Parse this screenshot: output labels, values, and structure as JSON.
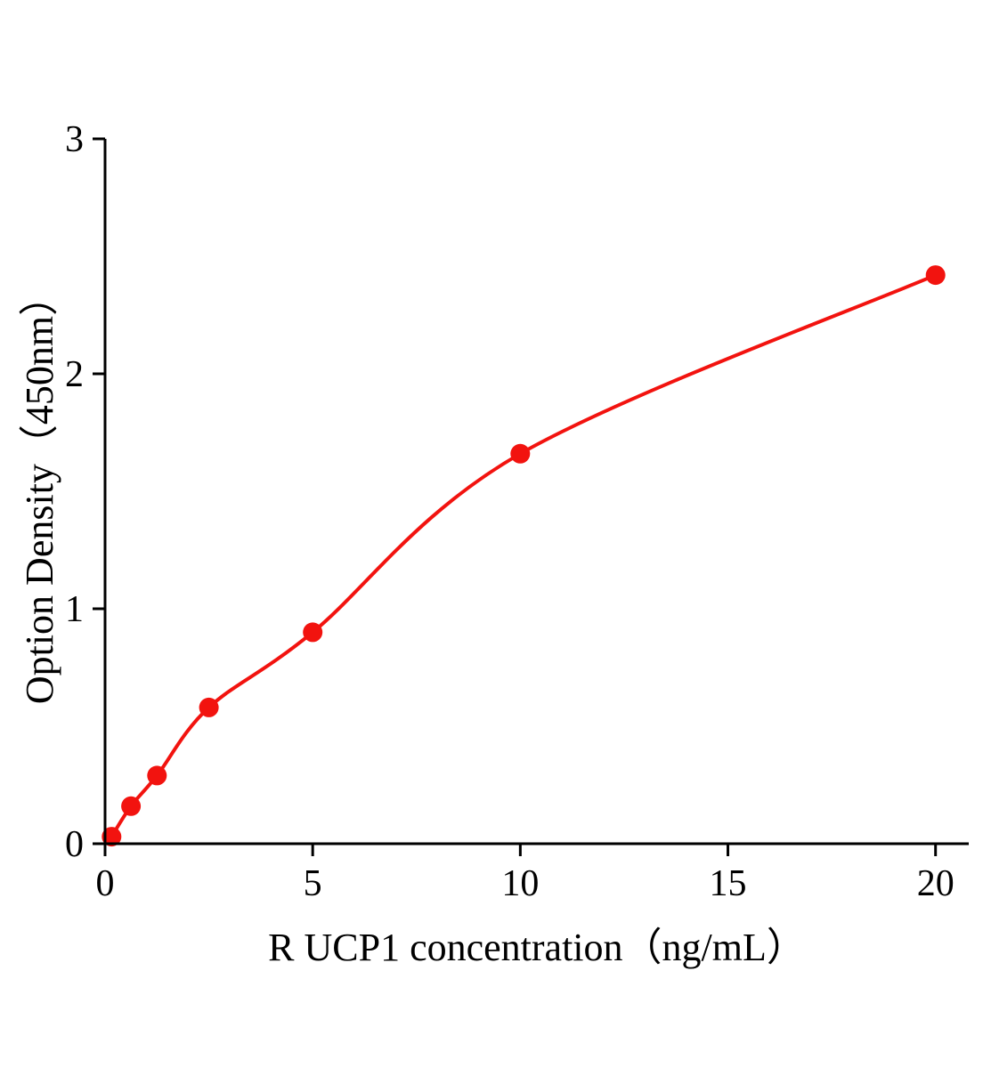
{
  "chart_data": {
    "type": "scatter",
    "title": "",
    "xlabel": "R UCP1 concentration（ng/mL）",
    "ylabel": "Option Density（450nm）",
    "x": [
      0.156,
      0.625,
      1.25,
      2.5,
      5,
      10,
      20
    ],
    "y": [
      0.03,
      0.16,
      0.29,
      0.58,
      0.9,
      1.66,
      2.42
    ],
    "fit": "smooth curve through points",
    "xlim": [
      0,
      20.8
    ],
    "ylim": [
      0,
      3
    ],
    "xticks": [
      0,
      5,
      10,
      15,
      20
    ],
    "yticks": [
      0,
      1,
      2,
      3
    ],
    "grid": false,
    "legend": "none",
    "point_color": "#f2130f",
    "line_color": "#f2130f",
    "axis_color": "#000000",
    "tick_label_color": "#000000"
  }
}
